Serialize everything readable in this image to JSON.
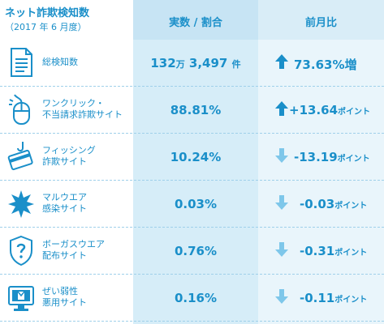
{
  "header": {
    "title": "ネット詐欺検知数",
    "subtitle": "（2017 年 6 月度）",
    "col_value": "実数 / 割合",
    "col_change": "前月比"
  },
  "colors": {
    "accent": "#1a8fc9",
    "arrow_up": "#1a8fc9",
    "arrow_down": "#7ec7ea"
  },
  "rows": [
    {
      "label1": "総検知数",
      "label2": "",
      "value_a": "132",
      "value_a_unit": "万",
      "value_b": "3,497",
      "value_b_unit": "件",
      "direction": "up",
      "change": "73.63%増",
      "change_unit": "",
      "icon": "document-icon"
    },
    {
      "label1": "ワンクリック・",
      "label2": "不当請求詐欺サイト",
      "value": "88.81%",
      "direction": "up",
      "change": "+13.64",
      "change_unit": "ポイント",
      "icon": "mouse-icon"
    },
    {
      "label1": "フィッシング",
      "label2": "詐欺サイト",
      "value": "10.24%",
      "direction": "down",
      "change": "-13.19",
      "change_unit": "ポイント",
      "icon": "card-hook-icon"
    },
    {
      "label1": "マルウエア",
      "label2": "感染サイト",
      "value": "0.03%",
      "direction": "down",
      "change": "-0.03",
      "change_unit": "ポイント",
      "icon": "virus-icon"
    },
    {
      "label1": "ボーガスウエア",
      "label2": "配布サイト",
      "value": "0.76%",
      "direction": "down",
      "change": "-0.31",
      "change_unit": "ポイント",
      "icon": "shield-question-icon"
    },
    {
      "label1": "ぜい弱性",
      "label2": "悪用サイト",
      "value": "0.16%",
      "direction": "down",
      "change": "-0.11",
      "change_unit": "ポイント",
      "icon": "monitor-icon"
    }
  ]
}
